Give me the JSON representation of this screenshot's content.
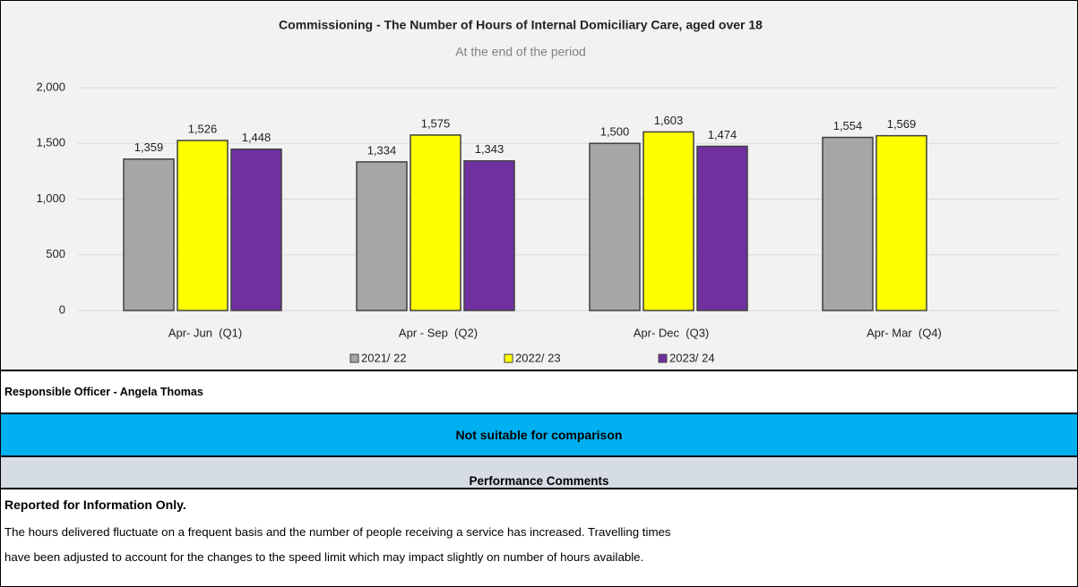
{
  "chart_data": {
    "type": "bar",
    "title": "Commissioning - The Number of Hours of Internal Domiciliary Care, aged over 18",
    "subtitle": "At the end of the period",
    "categories": [
      "Apr- Jun  (Q1)",
      "Apr - Sep  (Q2)",
      "Apr- Dec  (Q3)",
      "Apr- Mar  (Q4)"
    ],
    "series": [
      {
        "name": "2021/ 22",
        "color": "#a6a6a6",
        "values": [
          1359,
          1334,
          1500,
          1554
        ],
        "value_labels": [
          "1,359",
          "1,334",
          "1,500",
          "1,554"
        ]
      },
      {
        "name": "2022/ 23",
        "color": "#ffff00",
        "values": [
          1526,
          1575,
          1603,
          1569
        ],
        "value_labels": [
          "1,526",
          "1,575",
          "1,603",
          "1,569"
        ]
      },
      {
        "name": "2023/ 24",
        "color": "#7030a0",
        "values": [
          1448,
          1343,
          1474,
          null
        ],
        "value_labels": [
          "1,448",
          "1,343",
          "1,474",
          null
        ]
      }
    ],
    "ylim": [
      0,
      2000
    ],
    "yticks": [
      0,
      500,
      {
        "value": 1000,
        "label": "1,000"
      },
      {
        "value": 1500,
        "label": "1,500"
      },
      {
        "value": 2000,
        "label": "2,000"
      }
    ],
    "grid": true,
    "legend": "bottom"
  },
  "officer": "Responsible Officer - Angela Thomas",
  "status": "Not suitable for comparison",
  "comments": {
    "heading": "Performance Comments",
    "subheading": "Reported for Information Only.",
    "lines": [
      "The hours delivered fluctuate on a frequent basis and the number of people receiving a service has increased. Travelling times",
      "have been adjusted to account for the changes to the speed limit which may impact slightly on number of hours available."
    ]
  }
}
